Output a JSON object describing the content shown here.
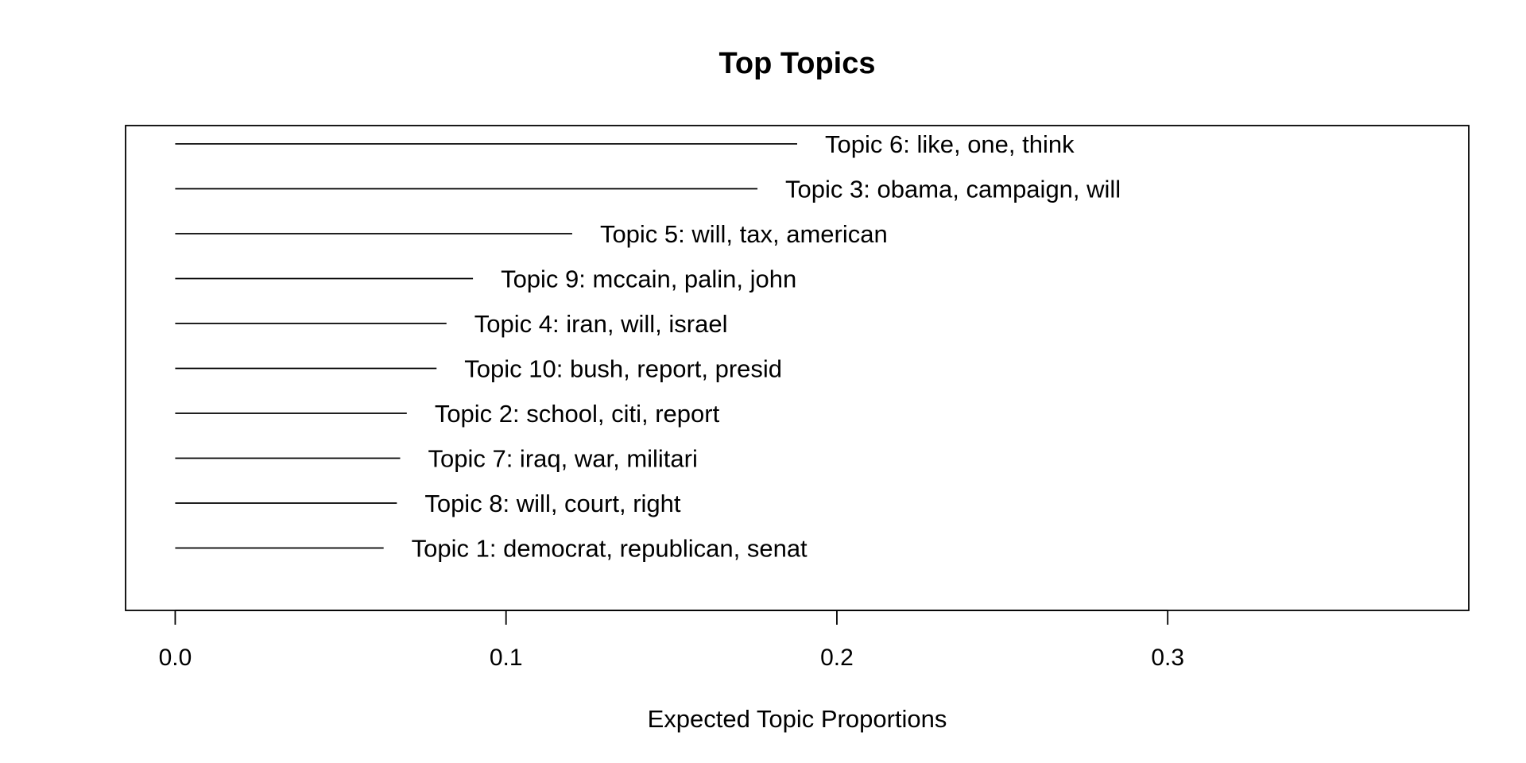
{
  "chart_data": {
    "type": "bar",
    "orientation": "horizontal",
    "title": "Top Topics",
    "xlabel": "Expected Topic Proportions",
    "ylabel": "",
    "xlim": [
      -0.015,
      0.391
    ],
    "xticks": [
      0.0,
      0.1,
      0.2,
      0.3
    ],
    "xtick_labels": [
      "0.0",
      "0.1",
      "0.2",
      "0.3"
    ],
    "grid": false,
    "legend": "none",
    "categories": [
      "Topic 6: like, one, think",
      "Topic 3: obama, campaign, will",
      "Topic 5: will, tax, american",
      "Topic 9: mccain, palin, john",
      "Topic 4: iran, will, israel",
      "Topic 10: bush, report, presid",
      "Topic 2: school, citi, report",
      "Topic 7: iraq, war, militari",
      "Topic 8: will, court, right",
      "Topic 1: democrat, republican, senat"
    ],
    "values": [
      0.188,
      0.176,
      0.12,
      0.09,
      0.082,
      0.079,
      0.07,
      0.068,
      0.067,
      0.063
    ]
  }
}
